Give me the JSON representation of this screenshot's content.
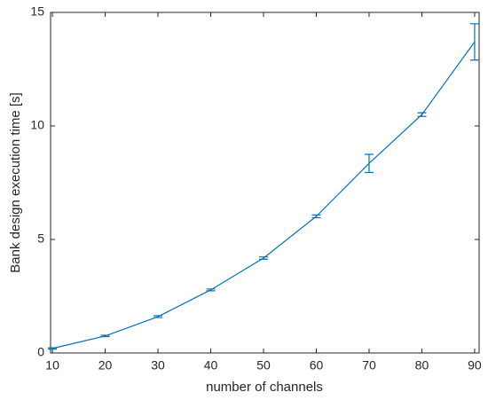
{
  "chart_data": {
    "type": "errorbar",
    "xlabel": "number of channels",
    "ylabel": "Bank design execution time [s]",
    "x": [
      10,
      20,
      30,
      40,
      50,
      60,
      70,
      80,
      90
    ],
    "series": [
      {
        "color": "#0072bd",
        "values": [
          0.2,
          0.75,
          1.6,
          2.78,
          4.18,
          6.02,
          8.35,
          10.5,
          13.7
        ],
        "errors": [
          0.03,
          0.03,
          0.04,
          0.04,
          0.05,
          0.06,
          0.4,
          0.08,
          0.8
        ]
      }
    ],
    "xlim": [
      9.65,
      90.85
    ],
    "xticks": [
      10,
      20,
      30,
      40,
      50,
      60,
      70,
      80,
      90
    ],
    "ylim": [
      0,
      15
    ],
    "yticks": [
      0,
      5,
      10,
      15
    ]
  }
}
